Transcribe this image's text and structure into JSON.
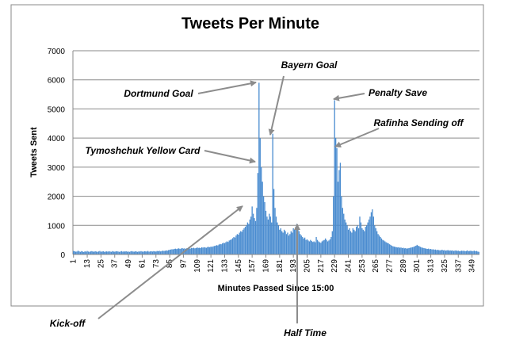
{
  "chart_data": {
    "type": "bar",
    "title": "Tweets Per Minute",
    "x_label": "Minutes Passed Since 15:00",
    "y_label": "Tweets Sent",
    "color": "#4a8cd0",
    "grid": true,
    "ylim": [
      0,
      7000
    ],
    "yticks": [
      0,
      1000,
      2000,
      3000,
      4000,
      5000,
      6000,
      7000
    ],
    "annotations": [
      "Dortmund Goal",
      "Bayern Goal",
      "Penalty Save",
      "Rafinha Sending off",
      "Tymoshchuk Yellow Card",
      "Kick-off",
      "Half Time"
    ],
    "categories": [
      "1",
      null,
      null,
      null,
      null,
      null,
      null,
      null,
      null,
      null,
      null,
      null,
      "13",
      null,
      null,
      null,
      null,
      null,
      null,
      null,
      null,
      null,
      null,
      null,
      "25",
      null,
      null,
      null,
      null,
      null,
      null,
      null,
      null,
      null,
      null,
      null,
      "37",
      null,
      null,
      null,
      null,
      null,
      null,
      null,
      null,
      null,
      null,
      null,
      "49",
      null,
      null,
      null,
      null,
      null,
      null,
      null,
      null,
      null,
      null,
      null,
      "61",
      null,
      null,
      null,
      null,
      null,
      null,
      null,
      null,
      null,
      null,
      null,
      "73",
      null,
      null,
      null,
      null,
      null,
      null,
      null,
      null,
      null,
      null,
      null,
      "85",
      null,
      null,
      null,
      null,
      null,
      null,
      null,
      null,
      null,
      null,
      null,
      "97",
      null,
      null,
      null,
      null,
      null,
      null,
      null,
      null,
      null,
      null,
      null,
      "109",
      null,
      null,
      null,
      null,
      null,
      null,
      null,
      null,
      null,
      null,
      null,
      "121",
      null,
      null,
      null,
      null,
      null,
      null,
      null,
      null,
      null,
      null,
      null,
      "133",
      null,
      null,
      null,
      null,
      null,
      null,
      null,
      null,
      null,
      null,
      null,
      "145",
      null,
      null,
      null,
      null,
      null,
      null,
      null,
      null,
      null,
      null,
      null,
      "157",
      null,
      null,
      null,
      null,
      null,
      null,
      null,
      null,
      null,
      null,
      null,
      "169",
      null,
      null,
      null,
      null,
      null,
      null,
      null,
      null,
      null,
      null,
      null,
      "181",
      null,
      null,
      null,
      null,
      null,
      null,
      null,
      null,
      null,
      null,
      null,
      "193",
      null,
      null,
      null,
      null,
      null,
      null,
      null,
      null,
      null,
      null,
      null,
      "205",
      null,
      null,
      null,
      null,
      null,
      null,
      null,
      null,
      null,
      null,
      null,
      "217",
      null,
      null,
      null,
      null,
      null,
      null,
      null,
      null,
      null,
      null,
      null,
      "229",
      null,
      null,
      null,
      null,
      null,
      null,
      null,
      null,
      null,
      null,
      null,
      "241",
      null,
      null,
      null,
      null,
      null,
      null,
      null,
      null,
      null,
      null,
      null,
      "253",
      null,
      null,
      null,
      null,
      null,
      null,
      null,
      null,
      null,
      null,
      null,
      "265",
      null,
      null,
      null,
      null,
      null,
      null,
      null,
      null,
      null,
      null,
      null,
      "277",
      null,
      null,
      null,
      null,
      null,
      null,
      null,
      null,
      null,
      null,
      null,
      "289",
      null,
      null,
      null,
      null,
      null,
      null,
      null,
      null,
      null,
      null,
      null,
      "301",
      null,
      null,
      null,
      null,
      null,
      null,
      null,
      null,
      null,
      null,
      null,
      "313",
      null,
      null,
      null,
      null,
      null,
      null,
      null,
      null,
      null,
      null,
      null,
      "325",
      null,
      null,
      null,
      null,
      null,
      null,
      null,
      null,
      null,
      null,
      null,
      "337",
      null,
      null,
      null,
      null,
      null,
      null,
      null,
      null,
      null,
      null,
      null,
      "349",
      null,
      null,
      null,
      null,
      null,
      null
    ],
    "values": [
      120,
      110,
      95,
      100,
      130,
      105,
      90,
      115,
      100,
      85,
      110,
      95,
      120,
      100,
      90,
      105,
      115,
      100,
      95,
      110,
      100,
      90,
      105,
      120,
      95,
      100,
      110,
      90,
      100,
      105,
      95,
      110,
      100,
      90,
      115,
      100,
      95,
      105,
      110,
      100,
      90,
      100,
      115,
      95,
      105,
      100,
      110,
      95,
      100,
      90,
      105,
      115,
      100,
      95,
      110,
      100,
      90,
      105,
      100,
      115,
      100,
      95,
      110,
      105,
      100,
      120,
      95,
      105,
      110,
      100,
      115,
      105,
      100,
      120,
      110,
      125,
      105,
      115,
      130,
      120,
      125,
      140,
      130,
      150,
      160,
      170,
      180,
      175,
      190,
      200,
      185,
      200,
      210,
      190,
      205,
      220,
      200,
      210,
      195,
      215,
      210,
      220,
      200,
      225,
      215,
      230,
      210,
      220,
      240,
      225,
      230,
      220,
      245,
      235,
      250,
      240,
      230,
      255,
      260,
      250,
      270,
      260,
      280,
      290,
      300,
      320,
      310,
      340,
      360,
      350,
      380,
      400,
      390,
      420,
      450,
      430,
      480,
      500,
      520,
      560,
      600,
      580,
      650,
      700,
      680,
      750,
      800,
      780,
      850,
      900,
      950,
      1000,
      1100,
      1050,
      1200,
      1300,
      1650,
      1400,
      1250,
      1150,
      1600,
      2800,
      5900,
      4000,
      3000,
      2500,
      2000,
      1800,
      1500,
      1300,
      1200,
      1400,
      1300,
      1100,
      4150,
      2250,
      1600,
      1300,
      1100,
      1000,
      850,
      900,
      800,
      750,
      850,
      800,
      700,
      750,
      650,
      700,
      800,
      750,
      900,
      850,
      950,
      1050,
      900,
      800,
      700,
      650,
      600,
      550,
      580,
      500,
      520,
      480,
      450,
      500,
      460,
      430,
      450,
      420,
      600,
      500,
      450,
      420,
      400,
      450,
      480,
      500,
      550,
      500,
      450,
      480,
      520,
      600,
      800,
      2000,
      5300,
      4000,
      3650,
      2500,
      2900,
      3150,
      2000,
      1600,
      1400,
      1200,
      1100,
      1000,
      850,
      900,
      800,
      750,
      900,
      850,
      800,
      950,
      1000,
      900,
      1300,
      1100,
      900,
      850,
      800,
      950,
      1000,
      1100,
      1200,
      1300,
      1450,
      1550,
      1300,
      1000,
      900,
      800,
      700,
      650,
      600,
      550,
      500,
      480,
      450,
      420,
      400,
      380,
      350,
      330,
      300,
      280,
      270,
      260,
      250,
      240,
      250,
      230,
      240,
      220,
      230,
      210,
      220,
      200,
      210,
      220,
      230,
      240,
      250,
      260,
      280,
      300,
      330,
      300,
      280,
      260,
      240,
      230,
      220,
      210,
      200,
      190,
      200,
      180,
      190,
      170,
      180,
      160,
      170,
      150,
      160,
      150,
      140,
      150,
      160,
      140,
      150,
      130,
      140,
      150,
      130,
      140,
      130,
      140,
      120,
      130,
      140,
      120,
      130,
      110,
      120,
      130,
      120,
      130,
      110,
      120,
      140,
      110,
      120,
      130,
      110,
      120,
      130,
      110,
      120,
      100,
      90
    ]
  }
}
